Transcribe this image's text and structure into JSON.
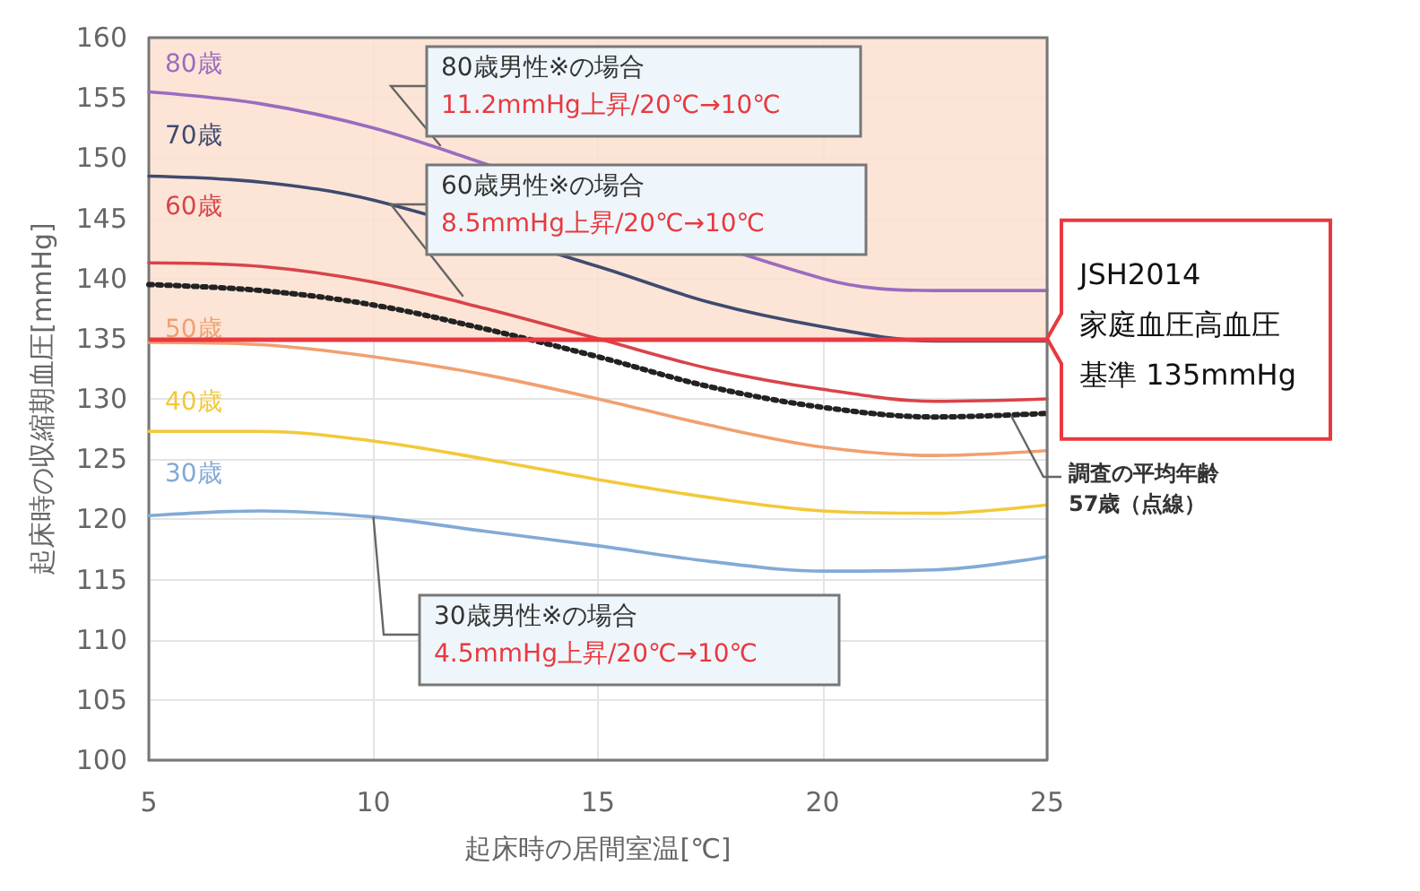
{
  "chart_data": {
    "type": "line",
    "xlabel": "起床時の居間室温[℃]",
    "ylabel": "起床時の収縮期血圧[mmHg]",
    "x": [
      5,
      7.5,
      10,
      12.5,
      15,
      17.5,
      20,
      22.5,
      25
    ],
    "xlim": [
      5,
      25
    ],
    "xticks": [
      5,
      10,
      15,
      20,
      25
    ],
    "ylim": [
      100,
      160
    ],
    "yticks": [
      100,
      105,
      110,
      115,
      120,
      125,
      130,
      135,
      140,
      145,
      150,
      155,
      160
    ],
    "grid": true,
    "legend": false,
    "marker": "none",
    "series": [
      {
        "name": "80歳",
        "color": "#9a6cc0",
        "values": [
          155.5,
          154.5,
          152.5,
          149.5,
          null,
          null,
          140,
          139,
          139
        ]
      },
      {
        "name": "70歳",
        "color": "#3f4a6e",
        "values": [
          148.5,
          148,
          146.5,
          null,
          141,
          138,
          136,
          134.8,
          134.8
        ]
      },
      {
        "name": "60歳",
        "color": "#d9434a",
        "values": [
          141.3,
          141,
          139.7,
          137.5,
          135,
          132.5,
          130.8,
          129.8,
          130
        ]
      },
      {
        "color": "#222222",
        "line_style": "dotted",
        "values": [
          139.5,
          139,
          137.8,
          135.8,
          133.5,
          131,
          129.3,
          128.5,
          128.8
        ]
      },
      {
        "name": "50歳",
        "color": "#f0a070",
        "values": [
          134.7,
          134.5,
          133.5,
          132,
          130,
          127.8,
          126,
          125.3,
          125.7
        ]
      },
      {
        "name": "40歳",
        "color": "#f2c93a",
        "values": [
          127.3,
          127.3,
          126.5,
          125,
          123.3,
          121.8,
          120.7,
          120.5,
          121.2
        ]
      },
      {
        "name": "30歳",
        "color": "#82aad6",
        "values": [
          120.3,
          120.7,
          120.2,
          119,
          117.8,
          116.5,
          115.7,
          115.8,
          116.9
        ]
      }
    ],
    "bands": [
      {
        "axis": "y",
        "from": 135,
        "to": 160,
        "color": "#fbe0d0"
      }
    ],
    "ref_lines": [
      {
        "axis": "y",
        "value": 135,
        "label": "JSH2014\n家庭血圧高血圧基準 135mmHg",
        "color": "#e8393f"
      }
    ],
    "annotations": [
      {
        "text": "80歳男性※の場合\n11.2mmHg上昇/20℃→10℃",
        "x": 11.5,
        "y": 151
      },
      {
        "text": "60歳男性※の場合\n8.5mmHg上昇/20℃→10℃",
        "x": 12,
        "y": 138.5
      },
      {
        "text": "30歳男性※の場合\n4.5mmHg上昇/20℃→10℃",
        "x": 10,
        "y": 120.2
      },
      {
        "text": "調査の平均年齢\n57歳（点線）",
        "x": 24.2,
        "y": 128.6
      }
    ]
  }
}
